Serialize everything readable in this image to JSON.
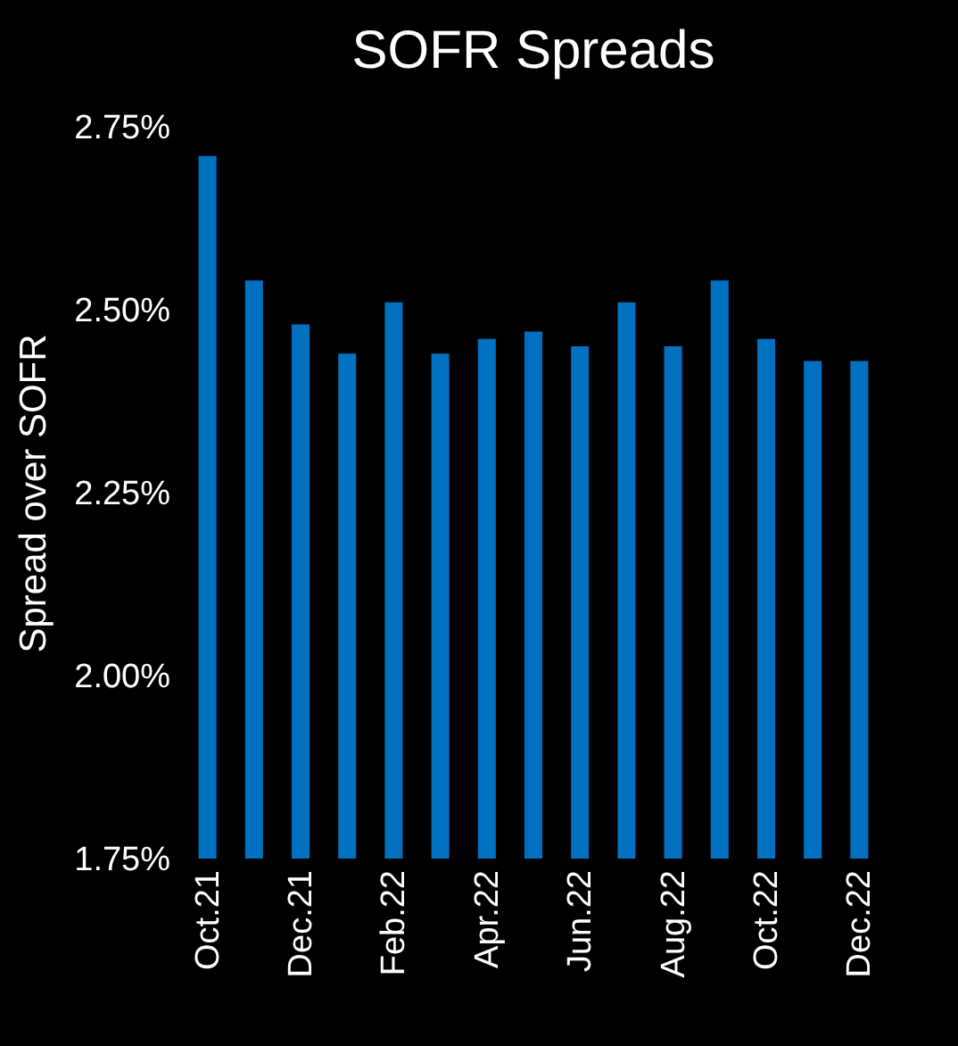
{
  "chart_data": {
    "type": "bar",
    "title": "SOFR Spreads",
    "ylabel": "Spread over SOFR",
    "categories": [
      "Oct.21",
      null,
      "Dec.21",
      null,
      "Feb.22",
      null,
      "Apr.22",
      null,
      "Jun.22",
      null,
      "Aug.22",
      null,
      "Oct.22",
      null,
      "Dec.22"
    ],
    "values": [
      2.71,
      2.54,
      2.48,
      2.44,
      2.51,
      2.44,
      2.46,
      2.47,
      2.45,
      2.51,
      2.45,
      2.54,
      2.46,
      2.43,
      2.43
    ],
    "color": "#0070c0",
    "ylim": [
      1.75,
      2.75
    ],
    "yticks": [
      {
        "value": 1.75,
        "label": "1.75%"
      },
      {
        "value": 2.0,
        "label": "2.00%"
      },
      {
        "value": 2.25,
        "label": "2.25%"
      },
      {
        "value": 2.5,
        "label": "2.50%"
      },
      {
        "value": 2.75,
        "label": "2.75%"
      }
    ],
    "grid": false
  }
}
